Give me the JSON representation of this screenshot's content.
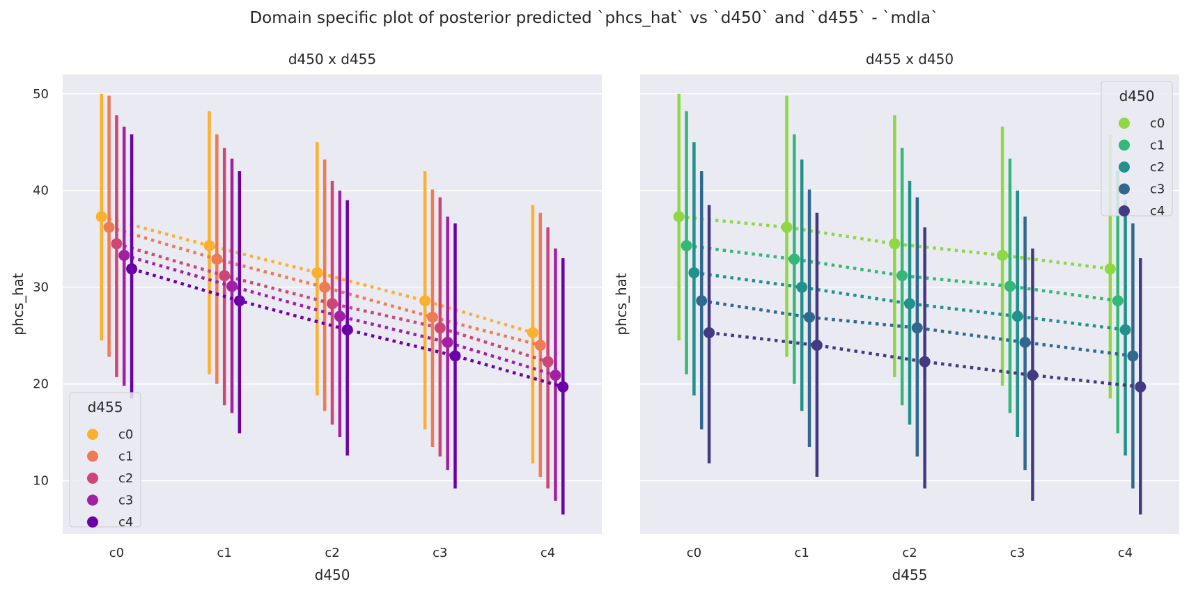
{
  "title": "Domain specific plot of posterior predicted `phcs_hat` vs `d450` and `d455` - `mdla`",
  "chart_data": [
    {
      "type": "pointplot",
      "title": "d450 x d455",
      "xlabel": "d450",
      "ylabel": "phcs_hat",
      "categories": [
        "c0",
        "c1",
        "c2",
        "c3",
        "c4"
      ],
      "ylim": [
        4.5,
        52
      ],
      "yticks": [
        10,
        20,
        30,
        40,
        50
      ],
      "legend": {
        "title": "d455",
        "position": "lower-left"
      },
      "series": [
        {
          "name": "c0",
          "color": "#fdb02e",
          "values": [
            37.3,
            34.3,
            31.5,
            28.6,
            25.3
          ],
          "lower": [
            24.5,
            21.0,
            18.8,
            15.3,
            11.8
          ],
          "upper": [
            50.0,
            48.2,
            45.0,
            42.0,
            38.5
          ]
        },
        {
          "name": "c1",
          "color": "#ef7b56",
          "values": [
            36.2,
            32.9,
            30.0,
            26.9,
            24.0
          ],
          "lower": [
            22.8,
            20.0,
            17.2,
            13.5,
            10.4
          ],
          "upper": [
            49.8,
            45.8,
            43.2,
            40.1,
            37.7
          ]
        },
        {
          "name": "c2",
          "color": "#cc4778",
          "values": [
            34.5,
            31.2,
            28.3,
            25.8,
            22.3
          ],
          "lower": [
            20.7,
            17.8,
            15.8,
            12.5,
            9.2
          ],
          "upper": [
            47.8,
            44.4,
            41.0,
            39.3,
            36.2
          ]
        },
        {
          "name": "c3",
          "color": "#a31fa3",
          "values": [
            33.3,
            30.1,
            27.0,
            24.3,
            20.9
          ],
          "lower": [
            19.8,
            17.0,
            14.5,
            11.1,
            7.9
          ],
          "upper": [
            46.6,
            43.3,
            40.0,
            37.3,
            34.0
          ]
        },
        {
          "name": "c4",
          "color": "#6a00a8",
          "values": [
            31.9,
            28.6,
            25.6,
            22.9,
            19.7
          ],
          "lower": [
            18.5,
            14.9,
            12.6,
            9.2,
            6.5
          ],
          "upper": [
            45.8,
            42.0,
            39.0,
            36.6,
            33.0
          ]
        }
      ]
    },
    {
      "type": "pointplot",
      "title": "d455 x d450",
      "xlabel": "d455",
      "ylabel": "phcs_hat",
      "categories": [
        "c0",
        "c1",
        "c2",
        "c3",
        "c4"
      ],
      "ylim": [
        4.5,
        52
      ],
      "yticks": [
        10,
        20,
        30,
        40,
        50
      ],
      "legend": {
        "title": "d450",
        "position": "upper-right"
      },
      "series": [
        {
          "name": "c0",
          "color": "#8fd744",
          "values": [
            37.3,
            36.2,
            34.5,
            33.3,
            31.9
          ],
          "lower": [
            24.5,
            22.8,
            20.7,
            19.8,
            18.5
          ],
          "upper": [
            50.0,
            49.8,
            47.8,
            46.6,
            45.8
          ]
        },
        {
          "name": "c1",
          "color": "#35b779",
          "values": [
            34.3,
            32.9,
            31.2,
            30.1,
            28.6
          ],
          "lower": [
            21.0,
            20.0,
            17.8,
            17.0,
            14.9
          ],
          "upper": [
            48.2,
            45.8,
            44.4,
            43.3,
            42.0
          ]
        },
        {
          "name": "c2",
          "color": "#21918c",
          "values": [
            31.5,
            30.0,
            28.3,
            27.0,
            25.6
          ],
          "lower": [
            18.8,
            17.2,
            15.8,
            14.5,
            12.6
          ],
          "upper": [
            45.0,
            43.2,
            41.0,
            40.0,
            39.0
          ]
        },
        {
          "name": "c3",
          "color": "#31688e",
          "values": [
            28.6,
            26.9,
            25.8,
            24.3,
            22.9
          ],
          "lower": [
            15.3,
            13.5,
            12.5,
            11.1,
            9.2
          ],
          "upper": [
            42.0,
            40.1,
            39.3,
            37.3,
            36.6
          ]
        },
        {
          "name": "c4",
          "color": "#443983",
          "values": [
            25.3,
            24.0,
            22.3,
            20.9,
            19.7
          ],
          "lower": [
            11.8,
            10.4,
            9.2,
            7.9,
            6.5
          ],
          "upper": [
            38.5,
            37.7,
            36.2,
            34.0,
            33.0
          ]
        }
      ]
    }
  ]
}
